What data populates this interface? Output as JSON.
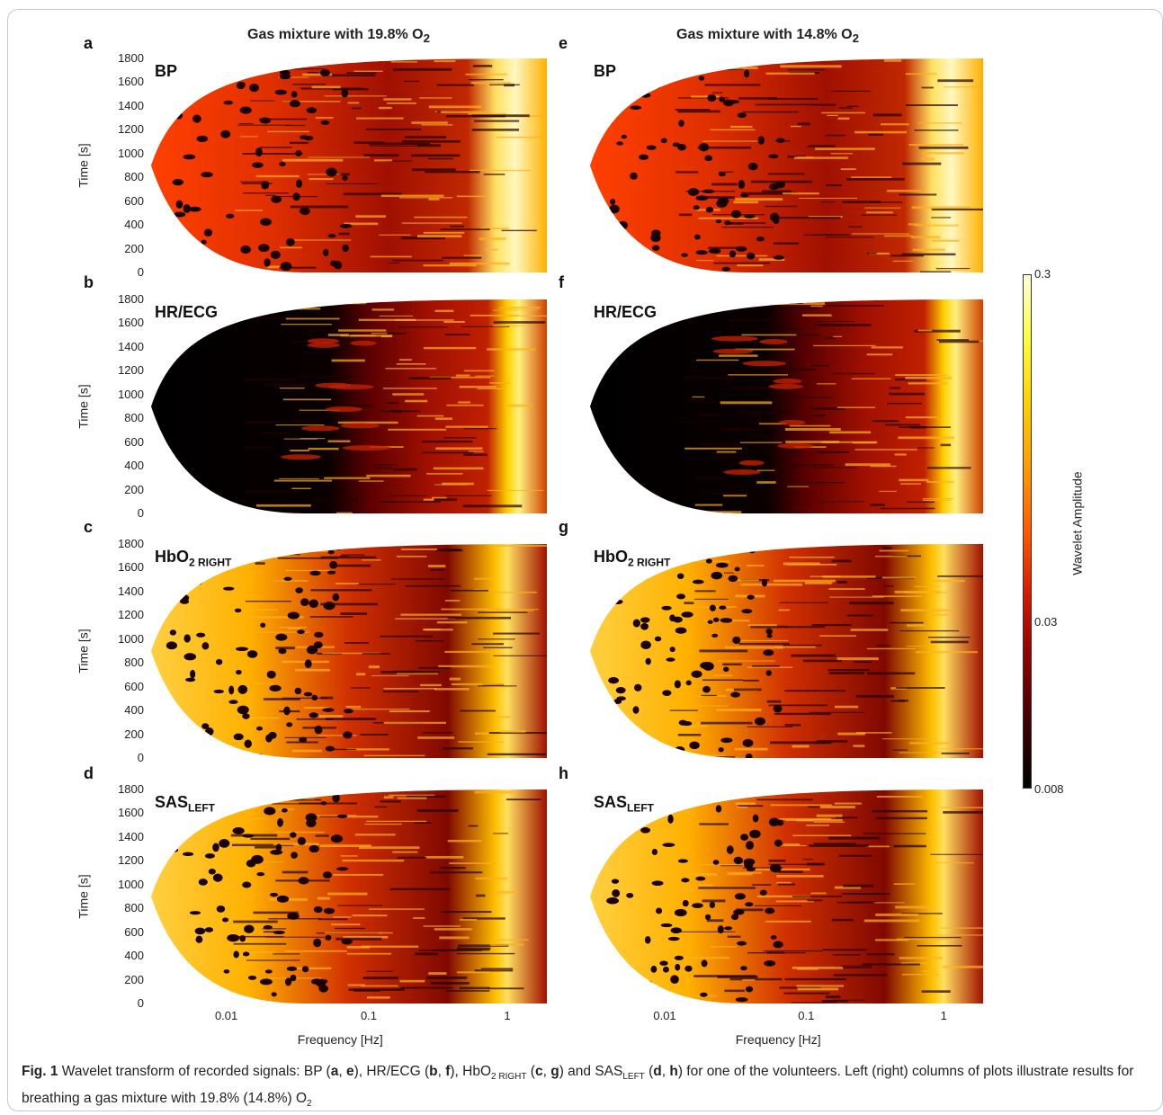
{
  "figure": {
    "columns": [
      {
        "title_main": "Gas mixture with 19.8% O",
        "title_sub": "2"
      },
      {
        "title_main": "Gas mixture with 14.8% O",
        "title_sub": "2"
      }
    ],
    "panels": [
      {
        "letter": "a",
        "label_main": "BP",
        "label_sub": "",
        "variant": "bp"
      },
      {
        "letter": "b",
        "label_main": "HR/ECG",
        "label_sub": "",
        "variant": "hr"
      },
      {
        "letter": "c",
        "label_main": "HbO",
        "label_sub": "2 RIGHT",
        "variant": "hbo"
      },
      {
        "letter": "d",
        "label_main": "SAS",
        "label_sub": "LEFT",
        "variant": "sas"
      },
      {
        "letter": "e",
        "label_main": "BP",
        "label_sub": "",
        "variant": "bp"
      },
      {
        "letter": "f",
        "label_main": "HR/ECG",
        "label_sub": "",
        "variant": "hr"
      },
      {
        "letter": "g",
        "label_main": "HbO",
        "label_sub": "2 RIGHT",
        "variant": "hbo"
      },
      {
        "letter": "h",
        "label_main": "SAS",
        "label_sub": "LEFT",
        "variant": "sas"
      }
    ],
    "y_axis": {
      "label": "Time [s]",
      "ticks": [
        "1800",
        "1600",
        "1400",
        "1200",
        "1000",
        "800",
        "600",
        "400",
        "200",
        "0"
      ]
    },
    "x_axis": {
      "label": "Frequency [Hz]",
      "ticks": [
        "0.01",
        "0.1",
        "1"
      ]
    },
    "colorbar": {
      "label": "Wavelet Amplitude",
      "ticks": [
        "0.3",
        "0.03",
        "0.008"
      ],
      "colors": [
        "#000000",
        "#8a0000",
        "#d61a00",
        "#ff5a00",
        "#ff9a00",
        "#ffd000",
        "#ffff40",
        "#ffffe0"
      ]
    },
    "caption": {
      "fig_label": "Fig. 1",
      "text": [
        {
          "t": "  Wavelet transform of recorded signals: BP ("
        },
        {
          "b": "a"
        },
        {
          "t": ", "
        },
        {
          "b": "e"
        },
        {
          "t": "), HR/ECG ("
        },
        {
          "b": "b"
        },
        {
          "t": ", "
        },
        {
          "b": "f"
        },
        {
          "t": "), HbO"
        },
        {
          "s": "2 RIGHT"
        },
        {
          "t": " ("
        },
        {
          "b": "c"
        },
        {
          "t": ", "
        },
        {
          "b": "g"
        },
        {
          "t": ") and SAS"
        },
        {
          "s": "LEFT"
        },
        {
          "t": " ("
        },
        {
          "b": "d"
        },
        {
          "t": ", "
        },
        {
          "b": "h"
        },
        {
          "t": ") for one of the volunteers. Left (right) columns of plots illustrate results for breathing a gas mixture with 19.8% (14.8%) O"
        },
        {
          "s": "2"
        }
      ]
    }
  }
}
